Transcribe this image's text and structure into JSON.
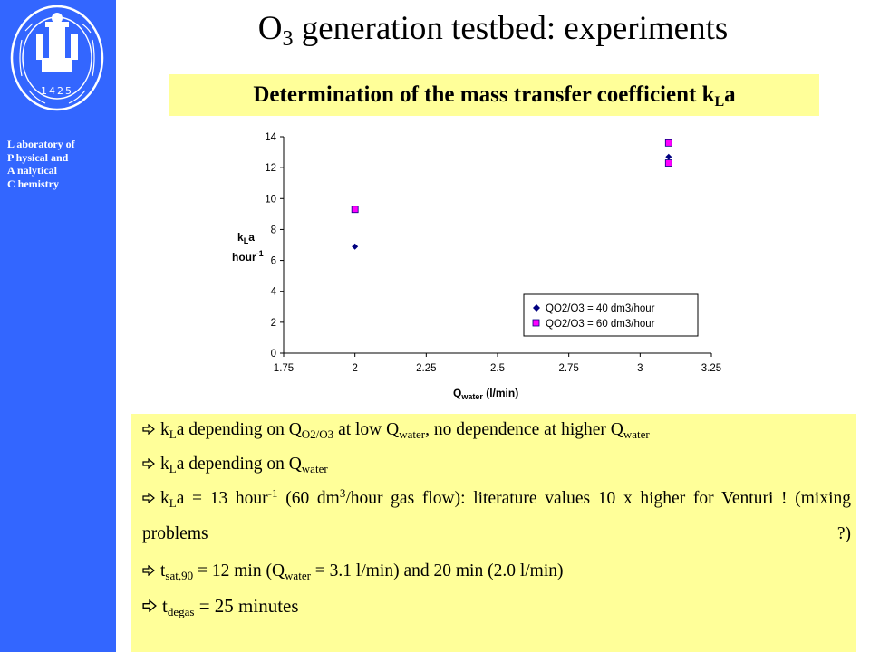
{
  "sidebar": {
    "seal_year": "1425",
    "lab_lines": [
      "L aboratory of",
      "P hysical and",
      "A nalytical",
      "C hemistry"
    ]
  },
  "title": {
    "main": "O",
    "sub": "3",
    "rest": " generation testbed: experiments"
  },
  "subtitle": {
    "text": "Determination of the mass transfer coefficient k",
    "sub": "L",
    "tail": "a"
  },
  "chart_data": {
    "type": "scatter",
    "x_label": "Q",
    "x_label_sub": "water",
    "x_label_unit": " (l/min)",
    "y_label_line1": "k",
    "y_label_sub": "L",
    "y_label_tail": "a",
    "y_label_line2": "hour",
    "y_label_sup": "-1",
    "xlim": [
      1.75,
      3.25
    ],
    "ylim": [
      0,
      14
    ],
    "x_ticks": [
      "1.75",
      "2",
      "2.25",
      "2.5",
      "2.75",
      "3",
      "3.25"
    ],
    "y_ticks": [
      "0",
      "2",
      "4",
      "6",
      "8",
      "10",
      "12",
      "14"
    ],
    "grid": false,
    "legend_position": "bottom-right",
    "series": [
      {
        "name": "QO2/O3 = 40 dm3/hour",
        "marker": "diamond",
        "color": "#000080",
        "points": [
          [
            2.0,
            6.9
          ],
          [
            3.1,
            12.7
          ]
        ]
      },
      {
        "name": "QO2/O3 = 60 dm3/hour",
        "marker": "square",
        "color": "#ff00ff",
        "points": [
          [
            2.0,
            9.3
          ],
          [
            3.1,
            13.6
          ],
          [
            3.1,
            12.3
          ]
        ]
      }
    ]
  },
  "bullets": [
    {
      "parts": [
        "k",
        "L",
        "a depending on Q",
        "O2/O3",
        " at low Q",
        "water",
        ", no dependence at higher Q",
        "water"
      ]
    },
    {
      "parts": [
        "k",
        "L",
        "a depending on Q",
        "water"
      ]
    },
    {
      "parts": [
        "k",
        "L",
        "a = 13 hour",
        "-1",
        " (60 dm",
        "3",
        "/hour gas flow): literature values 10 x higher for Venturi ! (mixing problems ?)"
      ]
    },
    {
      "parts": [
        "t",
        "sat,90",
        " = 12 min (Q",
        "water",
        " = 3.1 l/min) and 20 min (2.0 l/min)"
      ]
    },
    {
      "parts": [
        "t",
        "degas",
        " = 25 minutes"
      ]
    }
  ],
  "colors": {
    "sidebar": "#3366ff",
    "highlight": "#ffff99",
    "series1": "#000080",
    "series2": "#ff00ff"
  },
  "icons": {
    "seal": "university-seal-icon",
    "bullet": "outline-arrow-right-icon"
  }
}
